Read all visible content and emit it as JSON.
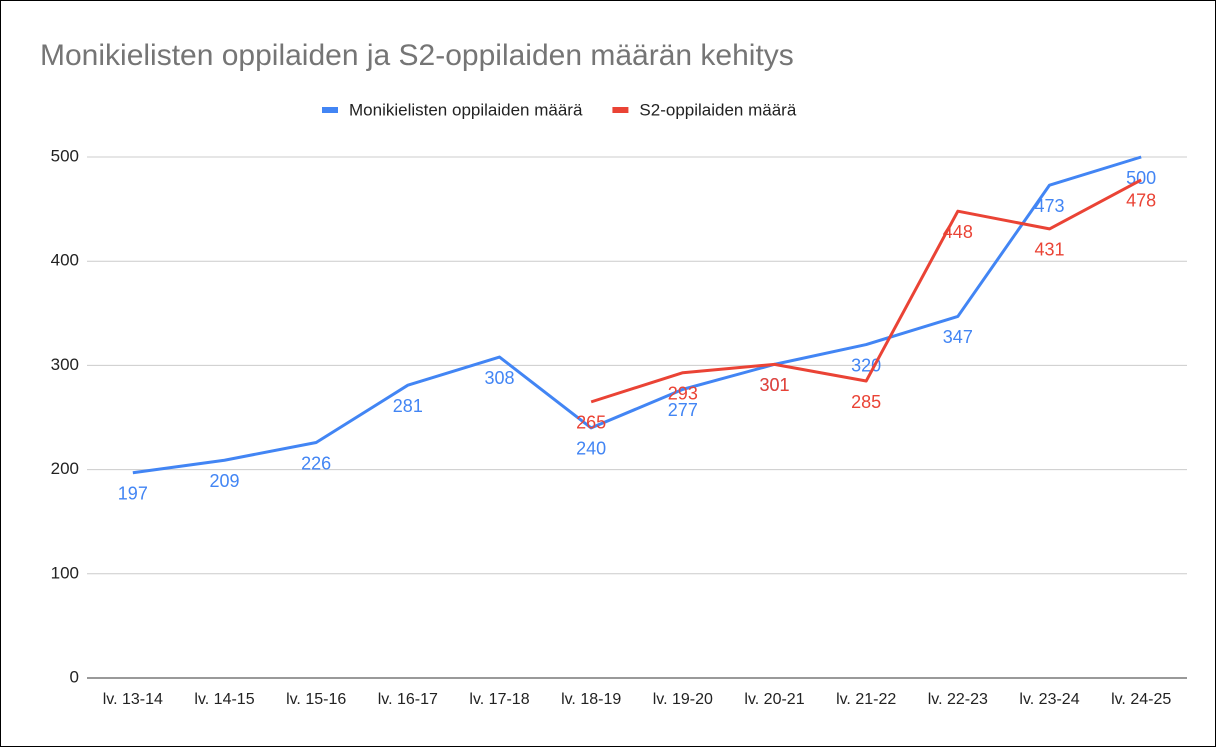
{
  "chart_data": {
    "type": "line",
    "title": "Monikielisten oppilaiden ja S2-oppilaiden määrän kehitys",
    "categories": [
      "lv. 13-14",
      "lv. 14-15",
      "lv. 15-16",
      "lv. 16-17",
      "lv. 17-18",
      "lv. 18-19",
      "lv. 19-20",
      "lv. 20-21",
      "lv. 21-22",
      "lv. 22-23",
      "lv. 23-24",
      "lv. 24-25"
    ],
    "series": [
      {
        "name": "Monikielisten oppilaiden määrä",
        "color": "#4285f4",
        "values": [
          197,
          209,
          226,
          281,
          308,
          240,
          277,
          301,
          320,
          347,
          473,
          500
        ]
      },
      {
        "name": "S2-oppilaiden määrä",
        "color": "#ea4335",
        "values": [
          null,
          null,
          null,
          null,
          null,
          265,
          293,
          301,
          285,
          448,
          431,
          478
        ]
      }
    ],
    "ylim": [
      0,
      500
    ],
    "yticks": [
      0,
      100,
      200,
      300,
      400,
      500
    ],
    "grid": true,
    "legend": "top"
  }
}
